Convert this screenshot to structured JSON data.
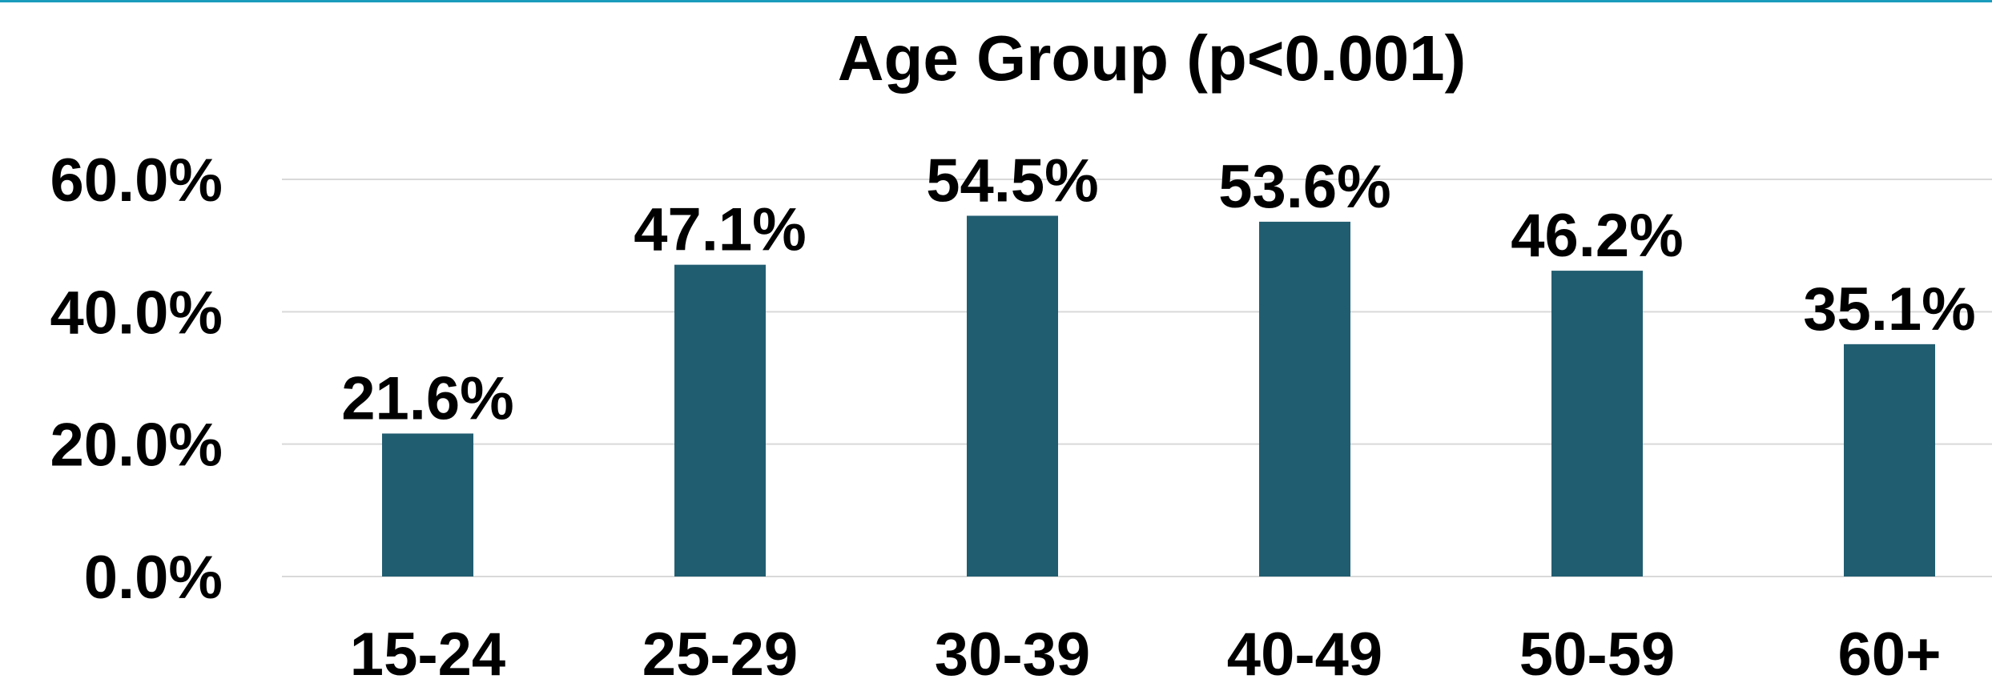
{
  "chart_data": {
    "type": "bar",
    "title": "Age Group (p<0.001)",
    "categories": [
      "15-24",
      "25-29",
      "30-39",
      "40-49",
      "50-59",
      "60+"
    ],
    "values": [
      21.6,
      47.1,
      54.5,
      53.6,
      46.2,
      35.1
    ],
    "data_labels": [
      "21.6%",
      "47.1%",
      "54.5%",
      "53.6%",
      "46.2%",
      "35.1%"
    ],
    "y_ticks": [
      {
        "value": 0,
        "label": "0.0%"
      },
      {
        "value": 20,
        "label": "20.0%"
      },
      {
        "value": 40,
        "label": "40.0%"
      },
      {
        "value": 60,
        "label": "60.0%"
      }
    ],
    "xlabel": "",
    "ylabel": "",
    "ylim": [
      0,
      60
    ],
    "grid": true,
    "legend": "none",
    "colors": {
      "bar": "#215d71",
      "grid": "#d9d9d9",
      "top_border": "#1b9cbc",
      "text": "#000000"
    }
  }
}
